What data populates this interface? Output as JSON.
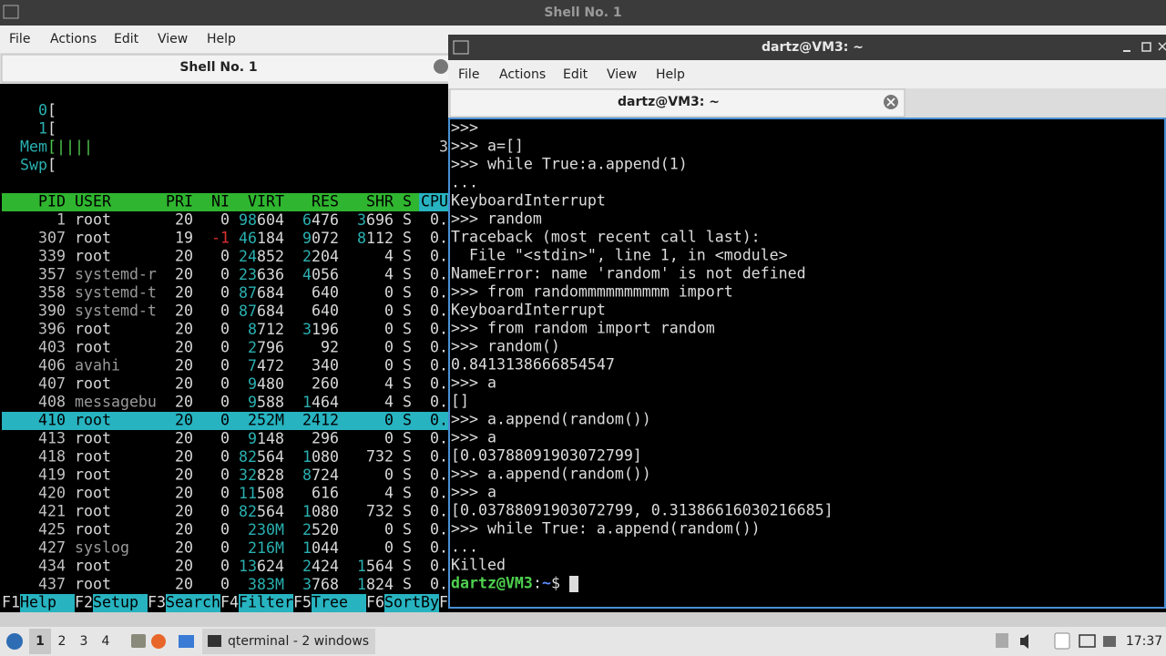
{
  "back_window": {
    "title": "Shell No. 1",
    "menu": [
      "File",
      "Actions",
      "Edit",
      "View",
      "Help"
    ],
    "tab": "Shell No. 1",
    "htop": {
      "meters": [
        {
          "label": "0",
          "bar": "["
        },
        {
          "label": "1",
          "bar": "["
        },
        {
          "label": "Mem",
          "bar": "[||||"
        },
        {
          "label": "Swp",
          "bar": "["
        }
      ],
      "meter_overflow": "3",
      "header": [
        "PID",
        "USER",
        "PRI",
        "NI",
        "VIRT",
        "RES",
        "SHR",
        "S",
        "CPU"
      ],
      "rows": [
        [
          "1",
          "root",
          "20",
          "0",
          "98604",
          "6476",
          "3696",
          "S",
          "0."
        ],
        [
          "307",
          "root",
          "19",
          "-1",
          "46184",
          "9072",
          "8112",
          "S",
          "0."
        ],
        [
          "339",
          "root",
          "20",
          "0",
          "24852",
          "2204",
          "4",
          "S",
          "0."
        ],
        [
          "357",
          "systemd-r",
          "20",
          "0",
          "23636",
          "4056",
          "4",
          "S",
          "0."
        ],
        [
          "358",
          "systemd-t",
          "20",
          "0",
          "87684",
          "640",
          "0",
          "S",
          "0."
        ],
        [
          "390",
          "systemd-t",
          "20",
          "0",
          "87684",
          "640",
          "0",
          "S",
          "0."
        ],
        [
          "396",
          "root",
          "20",
          "0",
          "8712",
          "3196",
          "0",
          "S",
          "0."
        ],
        [
          "403",
          "root",
          "20",
          "0",
          "2796",
          "92",
          "0",
          "S",
          "0."
        ],
        [
          "406",
          "avahi",
          "20",
          "0",
          "7472",
          "340",
          "0",
          "S",
          "0."
        ],
        [
          "407",
          "root",
          "20",
          "0",
          "9480",
          "260",
          "4",
          "S",
          "0."
        ],
        [
          "408",
          "messagebu",
          "20",
          "0",
          "9588",
          "1464",
          "4",
          "S",
          "0."
        ],
        [
          "410",
          "root",
          "20",
          "0",
          "252M",
          "2412",
          "0",
          "S",
          "0."
        ],
        [
          "413",
          "root",
          "20",
          "0",
          "9148",
          "296",
          "0",
          "S",
          "0."
        ],
        [
          "418",
          "root",
          "20",
          "0",
          "82564",
          "1080",
          "732",
          "S",
          "0."
        ],
        [
          "419",
          "root",
          "20",
          "0",
          "32828",
          "8724",
          "0",
          "S",
          "0."
        ],
        [
          "420",
          "root",
          "20",
          "0",
          "11508",
          "616",
          "4",
          "S",
          "0."
        ],
        [
          "421",
          "root",
          "20",
          "0",
          "82564",
          "1080",
          "732",
          "S",
          "0."
        ],
        [
          "425",
          "root",
          "20",
          "0",
          "230M",
          "2520",
          "0",
          "S",
          "0."
        ],
        [
          "427",
          "syslog",
          "20",
          "0",
          "216M",
          "1044",
          "0",
          "S",
          "0."
        ],
        [
          "434",
          "root",
          "20",
          "0",
          "13624",
          "2424",
          "1564",
          "S",
          "0."
        ],
        [
          "437",
          "root",
          "20",
          "0",
          "383M",
          "3768",
          "1824",
          "S",
          "0."
        ]
      ],
      "selected_row": 11,
      "function_keys": [
        {
          "key": "F1",
          "label": "Help"
        },
        {
          "key": "F2",
          "label": "Setup"
        },
        {
          "key": "F3",
          "label": "Search"
        },
        {
          "key": "F4",
          "label": "Filter"
        },
        {
          "key": "F5",
          "label": "Tree"
        },
        {
          "key": "F6",
          "label": "SortBy"
        }
      ],
      "function_key_overflow": "F"
    }
  },
  "front_window": {
    "title": "dartz@VM3: ~",
    "menu": [
      "File",
      "Actions",
      "Edit",
      "View",
      "Help"
    ],
    "tab": "dartz@VM3: ~",
    "lines": [
      ">>>",
      ">>> a=[]",
      ">>> while True:a.append(1)",
      "...",
      "KeyboardInterrupt",
      ">>> random",
      "Traceback (most recent call last):",
      "  File \"<stdin>\", line 1, in <module>",
      "NameError: name 'random' is not defined",
      ">>> from randommmmmmmmmm import",
      "KeyboardInterrupt",
      ">>> from random import random",
      ">>> random()",
      "0.8413138666854547",
      ">>> a",
      "[]",
      ">>> a.append(random())",
      ">>> a",
      "[0.03788091903072799]",
      ">>> a.append(random())",
      ">>> a",
      "[0.03788091903072799, 0.31386616030216685]",
      ">>> while True: a.append(random())",
      "...",
      "Killed"
    ],
    "prompt": {
      "user_host": "dartz@VM3",
      "separator": ":",
      "path": "~",
      "symbol": "$"
    }
  },
  "taskbar": {
    "workspaces": [
      "1",
      "2",
      "3",
      "4"
    ],
    "active_workspace": 0,
    "task": "qterminal - 2 windows",
    "clock": "17:37"
  }
}
